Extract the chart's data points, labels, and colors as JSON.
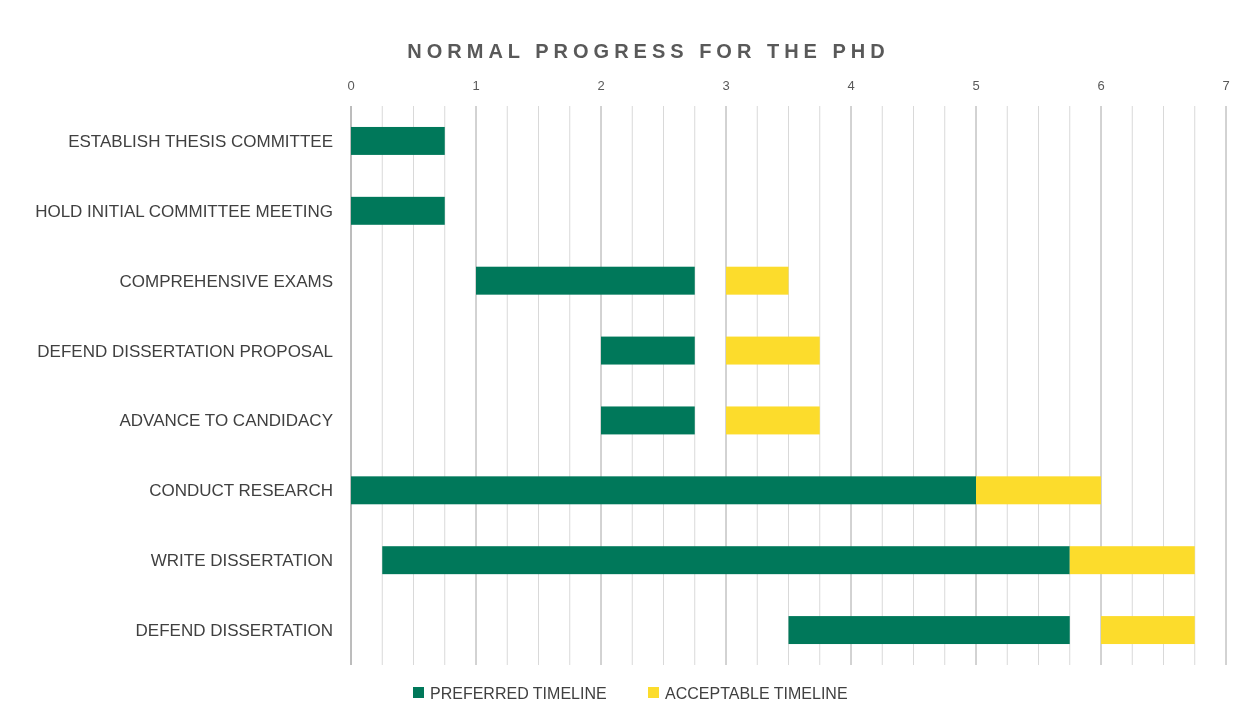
{
  "chart_data": {
    "type": "bar",
    "orientation": "horizontal",
    "stacked": false,
    "title": "NORMAL PROGRESS FOR THE PHD",
    "categories": [
      "ESTABLISH THESIS COMMITTEE",
      "HOLD INITIAL COMMITTEE MEETING",
      "COMPREHENSIVE EXAMS",
      "DEFEND DISSERTATION PROPOSAL",
      "ADVANCE TO CANDIDACY",
      "CONDUCT RESEARCH",
      "WRITE DISSERTATION",
      "DEFEND DISSERTATION"
    ],
    "series": [
      {
        "name": "PREFERRED TIMELINE",
        "color": "#00785a",
        "base": [
          0,
          0,
          1,
          2,
          2,
          0,
          0.25,
          3.5
        ],
        "values": [
          0.75,
          0.75,
          1.75,
          0.75,
          0.75,
          5,
          5.5,
          2.25
        ]
      },
      {
        "name": "ACCEPTABLE TIMELINE",
        "color": "#fcdc2c",
        "base": [
          null,
          null,
          3,
          3,
          3,
          5,
          5.75,
          6
        ],
        "values": [
          null,
          null,
          0.5,
          0.75,
          0.75,
          1,
          1,
          0.75
        ]
      }
    ],
    "xlim": [
      0,
      7
    ],
    "xticks": [
      0,
      {
        "value": 0.25,
        "label": null
      },
      {
        "value": 0.5,
        "label": null
      },
      {
        "value": 0.75,
        "label": null
      },
      1,
      {
        "value": 1.25,
        "label": null
      },
      {
        "value": 1.5,
        "label": null
      },
      {
        "value": 1.75,
        "label": null
      },
      2,
      {
        "value": 2.25,
        "label": null
      },
      {
        "value": 2.5,
        "label": null
      },
      {
        "value": 2.75,
        "label": null
      },
      3,
      {
        "value": 3.25,
        "label": null
      },
      {
        "value": 3.5,
        "label": null
      },
      {
        "value": 3.75,
        "label": null
      },
      4,
      {
        "value": 4.25,
        "label": null
      },
      {
        "value": 4.5,
        "label": null
      },
      {
        "value": 4.75,
        "label": null
      },
      5,
      {
        "value": 5.25,
        "label": null
      },
      {
        "value": 5.5,
        "label": null
      },
      {
        "value": 5.75,
        "label": null
      },
      6,
      {
        "value": 6.25,
        "label": null
      },
      {
        "value": 6.5,
        "label": null
      },
      {
        "value": 6.75,
        "label": null
      },
      7
    ],
    "grid": "x",
    "legend": "bottom"
  }
}
